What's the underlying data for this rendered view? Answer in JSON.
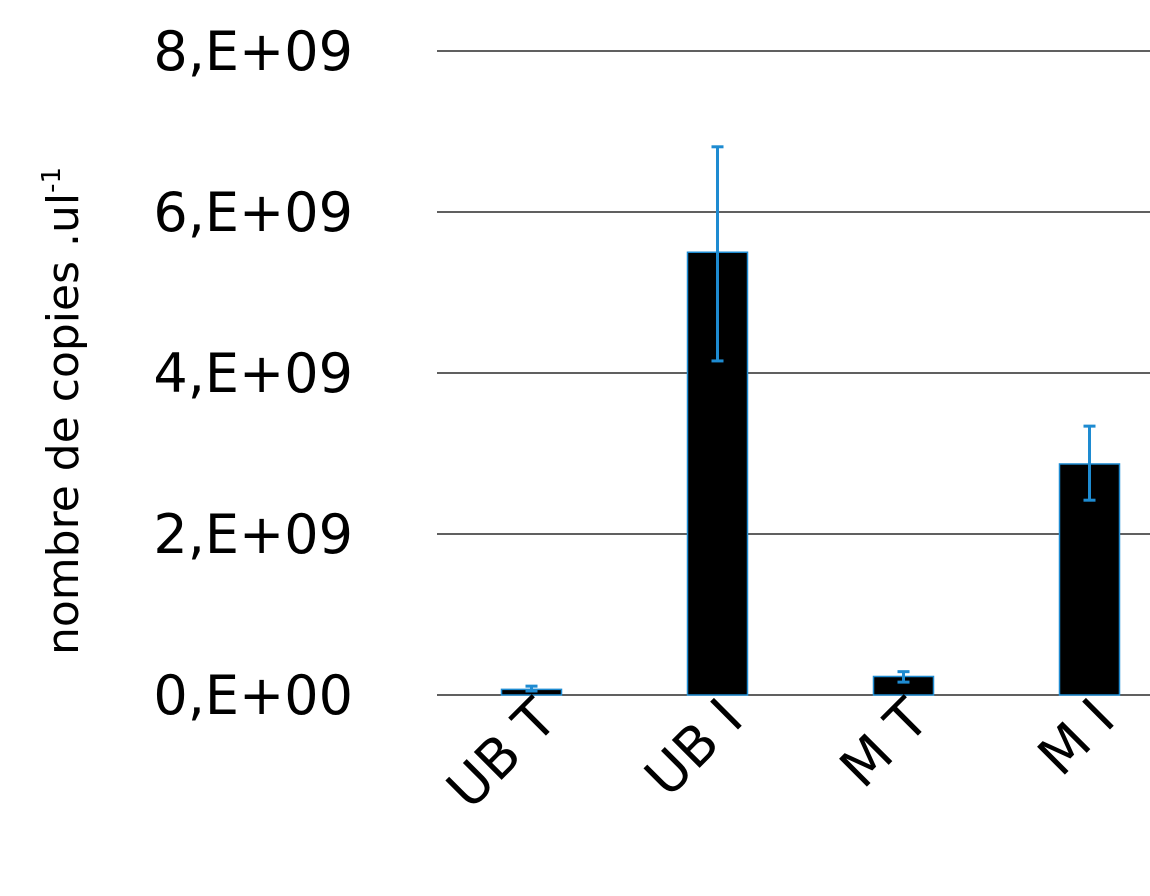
{
  "chart_data": {
    "type": "bar",
    "title": "",
    "xlabel": "",
    "ylabel": "nombre de copies .ul",
    "ylabel_superscript": "-1",
    "categories": [
      "UB T",
      "UB I",
      "M T",
      "M I"
    ],
    "series": [
      {
        "values": [
          70000000,
          5500000000,
          230000000,
          2870000000
        ],
        "error_low": [
          50000000,
          4150000000,
          160000000,
          2420000000
        ],
        "error_high": [
          110000000,
          6810000000,
          290000000,
          3340000000
        ]
      }
    ],
    "ylim": [
      0,
      8000000000
    ],
    "yticks": [
      0,
      2000000000,
      4000000000,
      6000000000,
      8000000000
    ],
    "ytick_labels": [
      "0,E+00",
      "2,E+09",
      "4,E+09",
      "6,E+09",
      "8,E+09"
    ],
    "grid": true,
    "legend": "none",
    "colors": {
      "bar_fill": "#000000",
      "bar_edge": "#1e8bd1",
      "error_bar": "#1e8bd1",
      "grid": "#000000"
    }
  }
}
